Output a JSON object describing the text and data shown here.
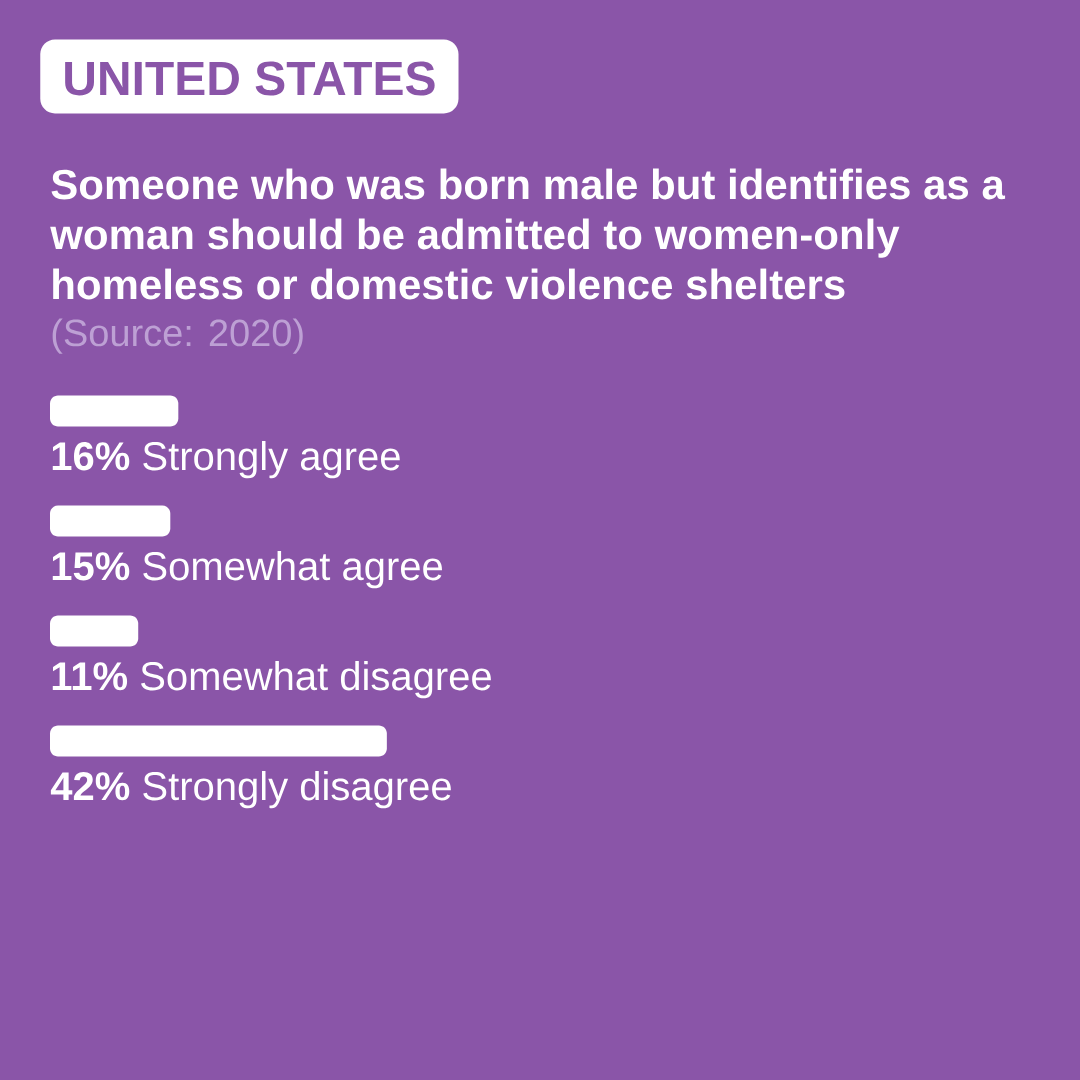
{
  "chart_data": {
    "type": "bar",
    "orientation": "horizontal",
    "title": "UNITED STATES",
    "subtitle": "Someone who was born male but identifies as a woman should be admitted to women-only homeless or domestic violence shelters",
    "annotations": [
      "(Source: 2020)"
    ],
    "categories": [
      "Strongly agree",
      "Somewhat agree",
      "Somewhat disagree",
      "Strongly disagree"
    ],
    "values": [
      16,
      15,
      11,
      42
    ],
    "value_labels": [
      "16%",
      "15%",
      "11%",
      "42%"
    ],
    "color": "#ffffff",
    "tick_labels": false
  }
}
